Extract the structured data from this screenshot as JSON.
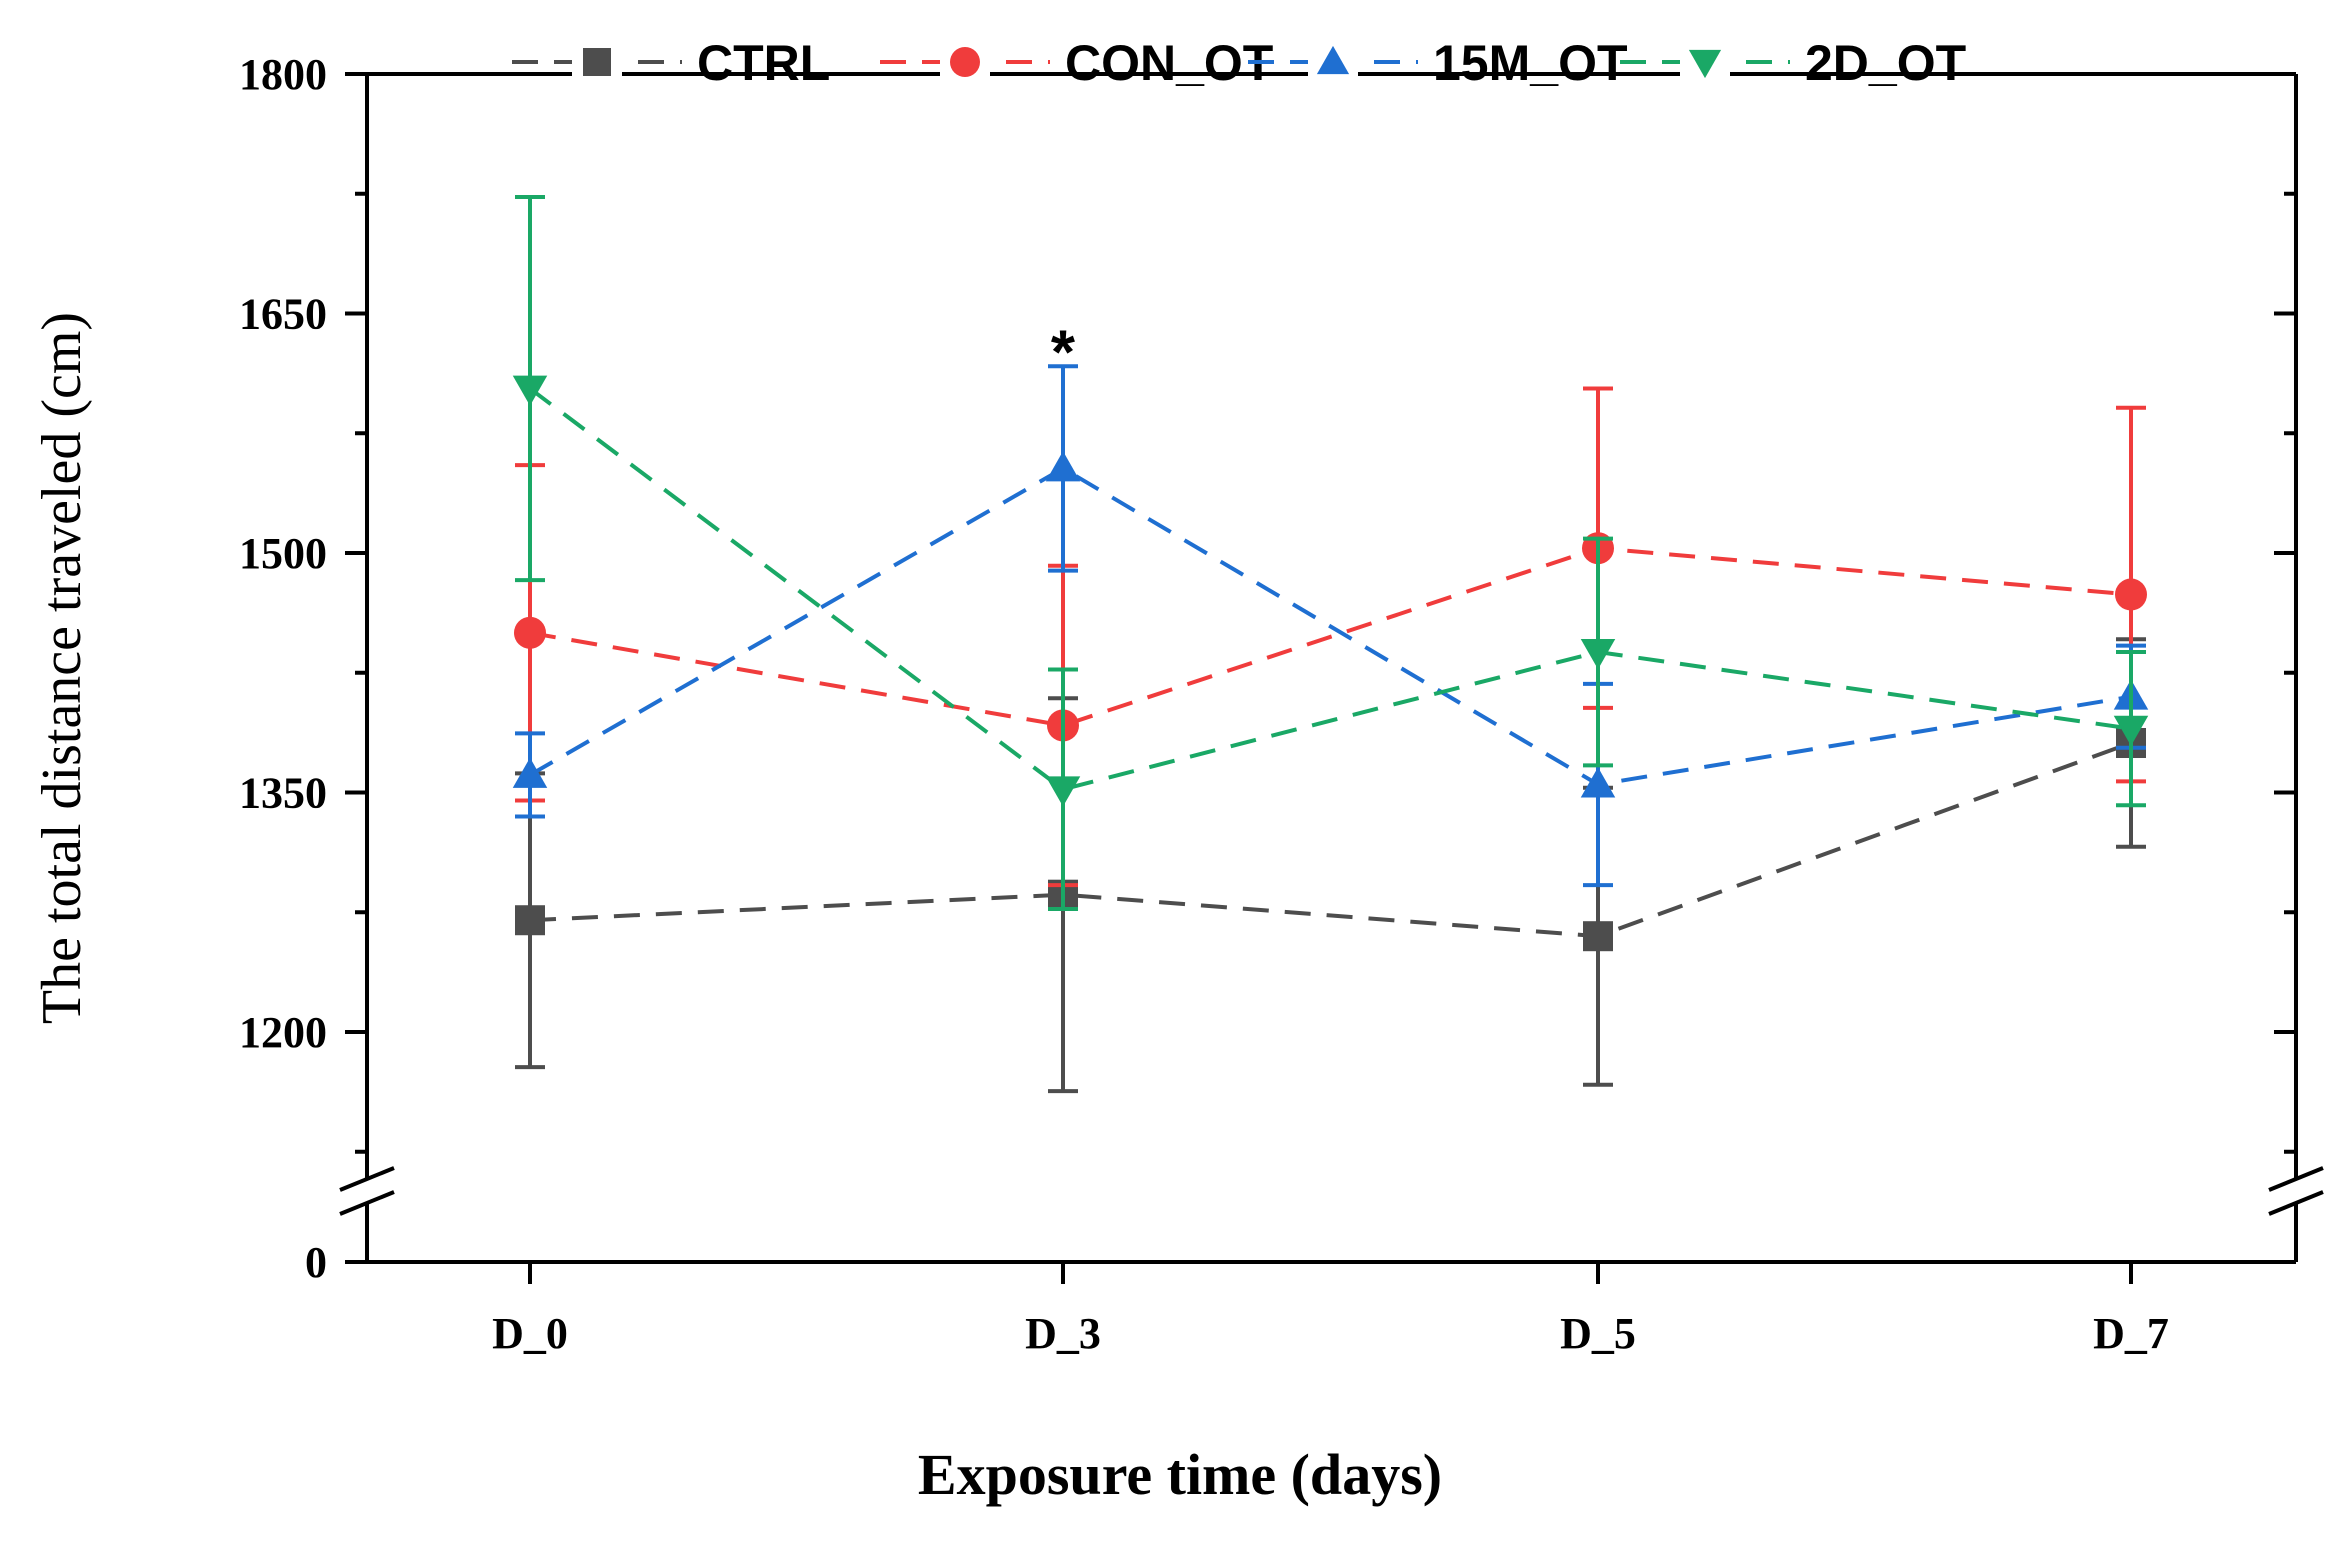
{
  "chart_data": {
    "type": "line",
    "xlabel": "Exposure time (days)",
    "ylabel": "The total distance traveled (cm)",
    "categories": [
      "D_0",
      "D_3",
      "D_5",
      "D_7"
    ],
    "y_ticks": [
      0,
      1200,
      1350,
      1500,
      1650,
      1800
    ],
    "y_axis_break": true,
    "ylim_upper": [
      1125,
      1800
    ],
    "legend_position": "top",
    "series": [
      {
        "name": "CTRL",
        "color": "#4d4d4d",
        "marker": "square",
        "values": [
          1270,
          1286,
          1260,
          1381
        ],
        "errors": [
          92,
          123,
          93,
          65
        ]
      },
      {
        "name": "CON_OT",
        "color": "#f03c3c",
        "marker": "circle",
        "values": [
          1450,
          1392,
          1503,
          1474
        ],
        "errors": [
          105,
          100,
          100,
          117
        ]
      },
      {
        "name": "15M_OT",
        "color": "#1f6fd1",
        "marker": "triangle-up",
        "values": [
          1361,
          1553,
          1355,
          1410
        ],
        "errors": [
          26,
          64,
          63,
          32
        ]
      },
      {
        "name": "2D_OT",
        "color": "#1aa866",
        "marker": "triangle-down",
        "values": [
          1603,
          1352,
          1438,
          1390
        ],
        "errors": [
          120,
          75,
          71,
          48
        ]
      }
    ],
    "annotations": [
      {
        "text": "*",
        "category": "D_3",
        "value": 1630
      }
    ]
  }
}
